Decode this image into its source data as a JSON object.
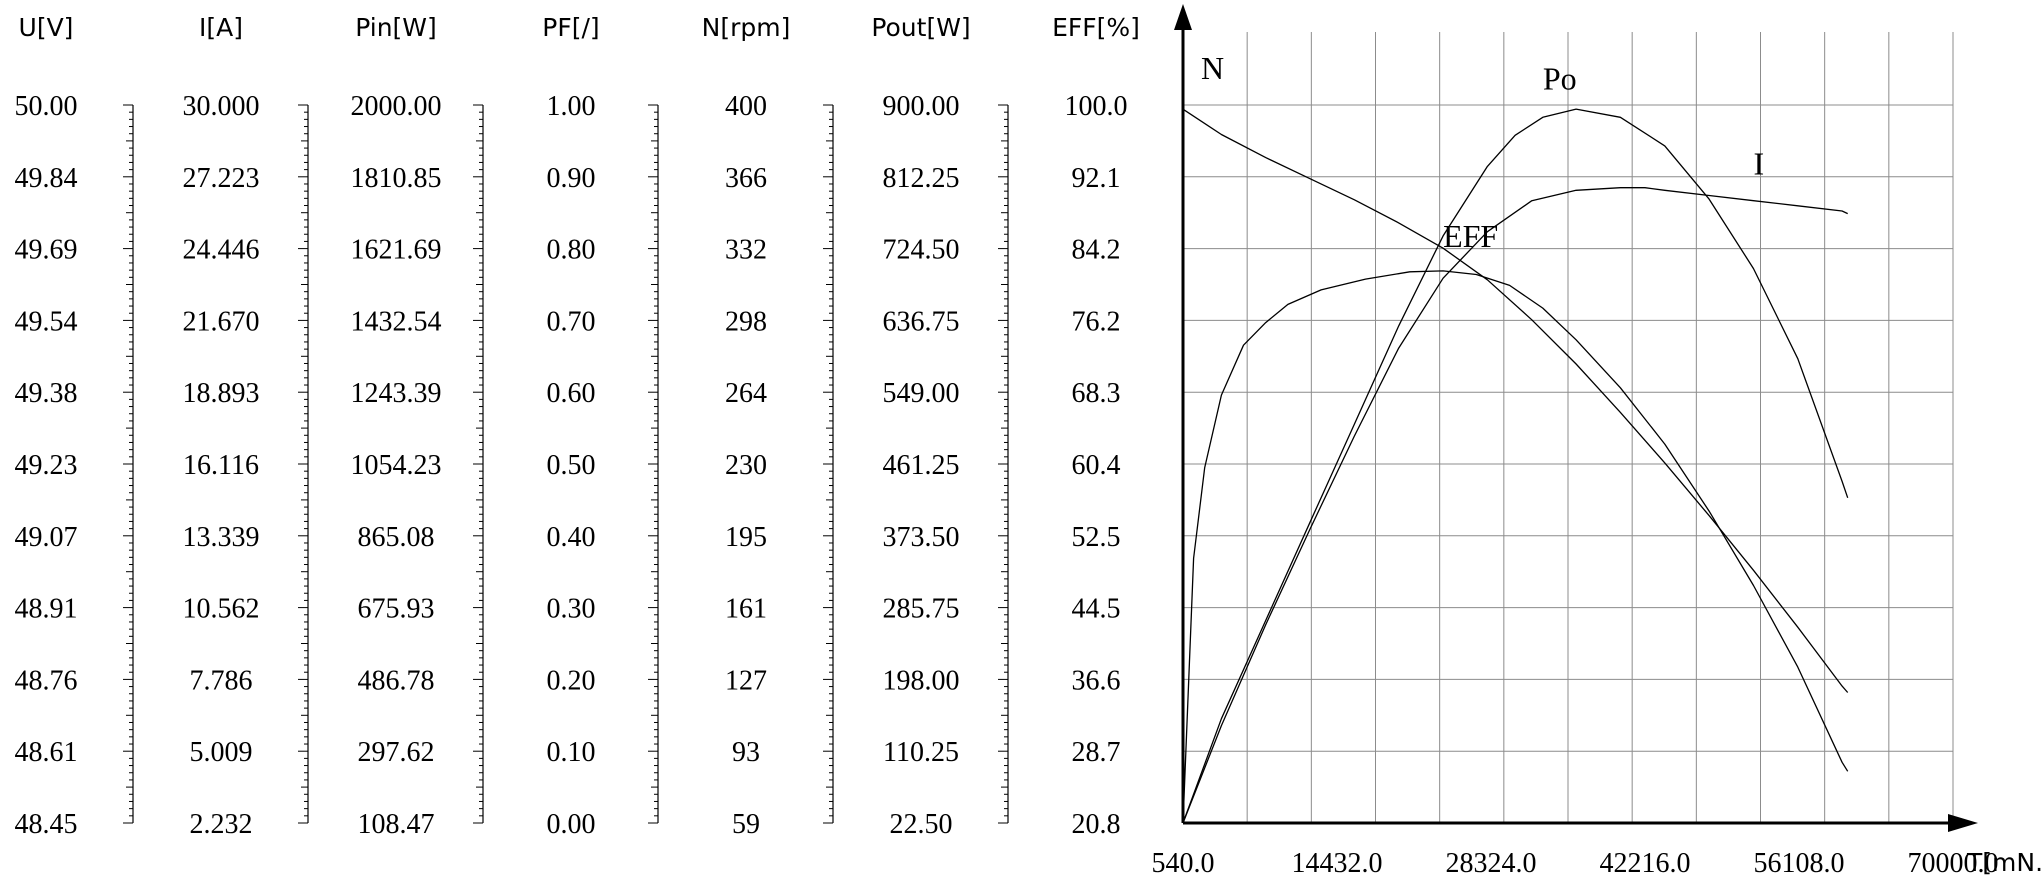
{
  "chart_data": {
    "type": "line",
    "title": "",
    "xlabel": "T[mN.m]",
    "grid": true,
    "x_ticks": [
      "540.0",
      "14432.0",
      "28324.0",
      "42216.0",
      "56108.0",
      "70000.0"
    ],
    "xlim": [
      540,
      70000
    ],
    "scales": [
      {
        "name": "U[V]",
        "ticks": [
          "50.00",
          "49.84",
          "49.69",
          "49.54",
          "49.38",
          "49.23",
          "49.07",
          "48.91",
          "48.76",
          "48.61",
          "48.45"
        ]
      },
      {
        "name": "I[A]",
        "ticks": [
          "30.000",
          "27.223",
          "24.446",
          "21.670",
          "18.893",
          "16.116",
          "13.339",
          "10.562",
          "7.786",
          "5.009",
          "2.232"
        ]
      },
      {
        "name": "Pin[W]",
        "ticks": [
          "2000.00",
          "1810.85",
          "1621.69",
          "1432.54",
          "1243.39",
          "1054.23",
          "865.08",
          "675.93",
          "486.78",
          "297.62",
          "108.47"
        ]
      },
      {
        "name": "PF[/]",
        "ticks": [
          "1.00",
          "0.90",
          "0.80",
          "0.70",
          "0.60",
          "0.50",
          "0.40",
          "0.30",
          "0.20",
          "0.10",
          "0.00"
        ]
      },
      {
        "name": "N[rpm]",
        "ticks": [
          "400",
          "366",
          "332",
          "298",
          "264",
          "230",
          "195",
          "161",
          "127",
          "93",
          "59"
        ]
      },
      {
        "name": "Pout[W]",
        "ticks": [
          "900.00",
          "812.25",
          "724.50",
          "636.75",
          "549.00",
          "461.25",
          "373.50",
          "285.75",
          "198.00",
          "110.25",
          "22.50"
        ]
      },
      {
        "name": "EFF[%]",
        "ticks": [
          "100.0",
          "92.1",
          "84.2",
          "76.2",
          "68.3",
          "60.4",
          "52.5",
          "44.5",
          "36.6",
          "28.7",
          "20.8"
        ]
      }
    ],
    "series": [
      {
        "name": "N",
        "scale": "N[rpm]",
        "x": [
          540,
          4000,
          8000,
          12000,
          16000,
          20000,
          24000,
          28000,
          32000,
          36000,
          40000,
          44000,
          48000,
          52000,
          56000,
          60000,
          60500
        ],
        "y": [
          398,
          386,
          375,
          365,
          355,
          344,
          332,
          317,
          298,
          277,
          254,
          230,
          205,
          179,
          152,
          124,
          121
        ]
      },
      {
        "name": "Po",
        "scale": "Pout[W]",
        "x": [
          540,
          4000,
          8000,
          12000,
          16000,
          20000,
          24000,
          28000,
          30500,
          33000,
          36000,
          40000,
          44000,
          48000,
          52000,
          56000,
          60000,
          60500
        ],
        "y": [
          22.5,
          150,
          270,
          390,
          510,
          630,
          740,
          825,
          863,
          885,
          895,
          885,
          850,
          785,
          700,
          590,
          440,
          420
        ]
      },
      {
        "name": "EFF",
        "scale": "EFF[%]",
        "x": [
          540,
          1500,
          2500,
          4000,
          6000,
          8000,
          10000,
          13000,
          17000,
          21000,
          24000,
          27000,
          30000,
          33000,
          36000,
          40000,
          44000,
          48000,
          52000,
          56000,
          60000,
          60500
        ],
        "y": [
          20.8,
          50,
          60,
          68,
          73.5,
          76,
          78,
          79.6,
          80.8,
          81.6,
          81.7,
          81.3,
          80.1,
          77.6,
          74.1,
          68.8,
          62.6,
          55.2,
          47.0,
          38.0,
          27.5,
          26.5
        ]
      },
      {
        "name": "I",
        "scale": "I[A]",
        "x": [
          540,
          4000,
          8000,
          12000,
          16000,
          20000,
          24000,
          28000,
          32000,
          36000,
          40000,
          42216,
          44000,
          48000,
          52000,
          56000,
          60000,
          60500
        ],
        "y": [
          2.232,
          6,
          9.9,
          13.6,
          17.2,
          20.6,
          23.3,
          25.1,
          26.3,
          26.7,
          26.8,
          26.8,
          26.7,
          26.5,
          26.3,
          26.1,
          25.9,
          25.8
        ]
      }
    ]
  }
}
